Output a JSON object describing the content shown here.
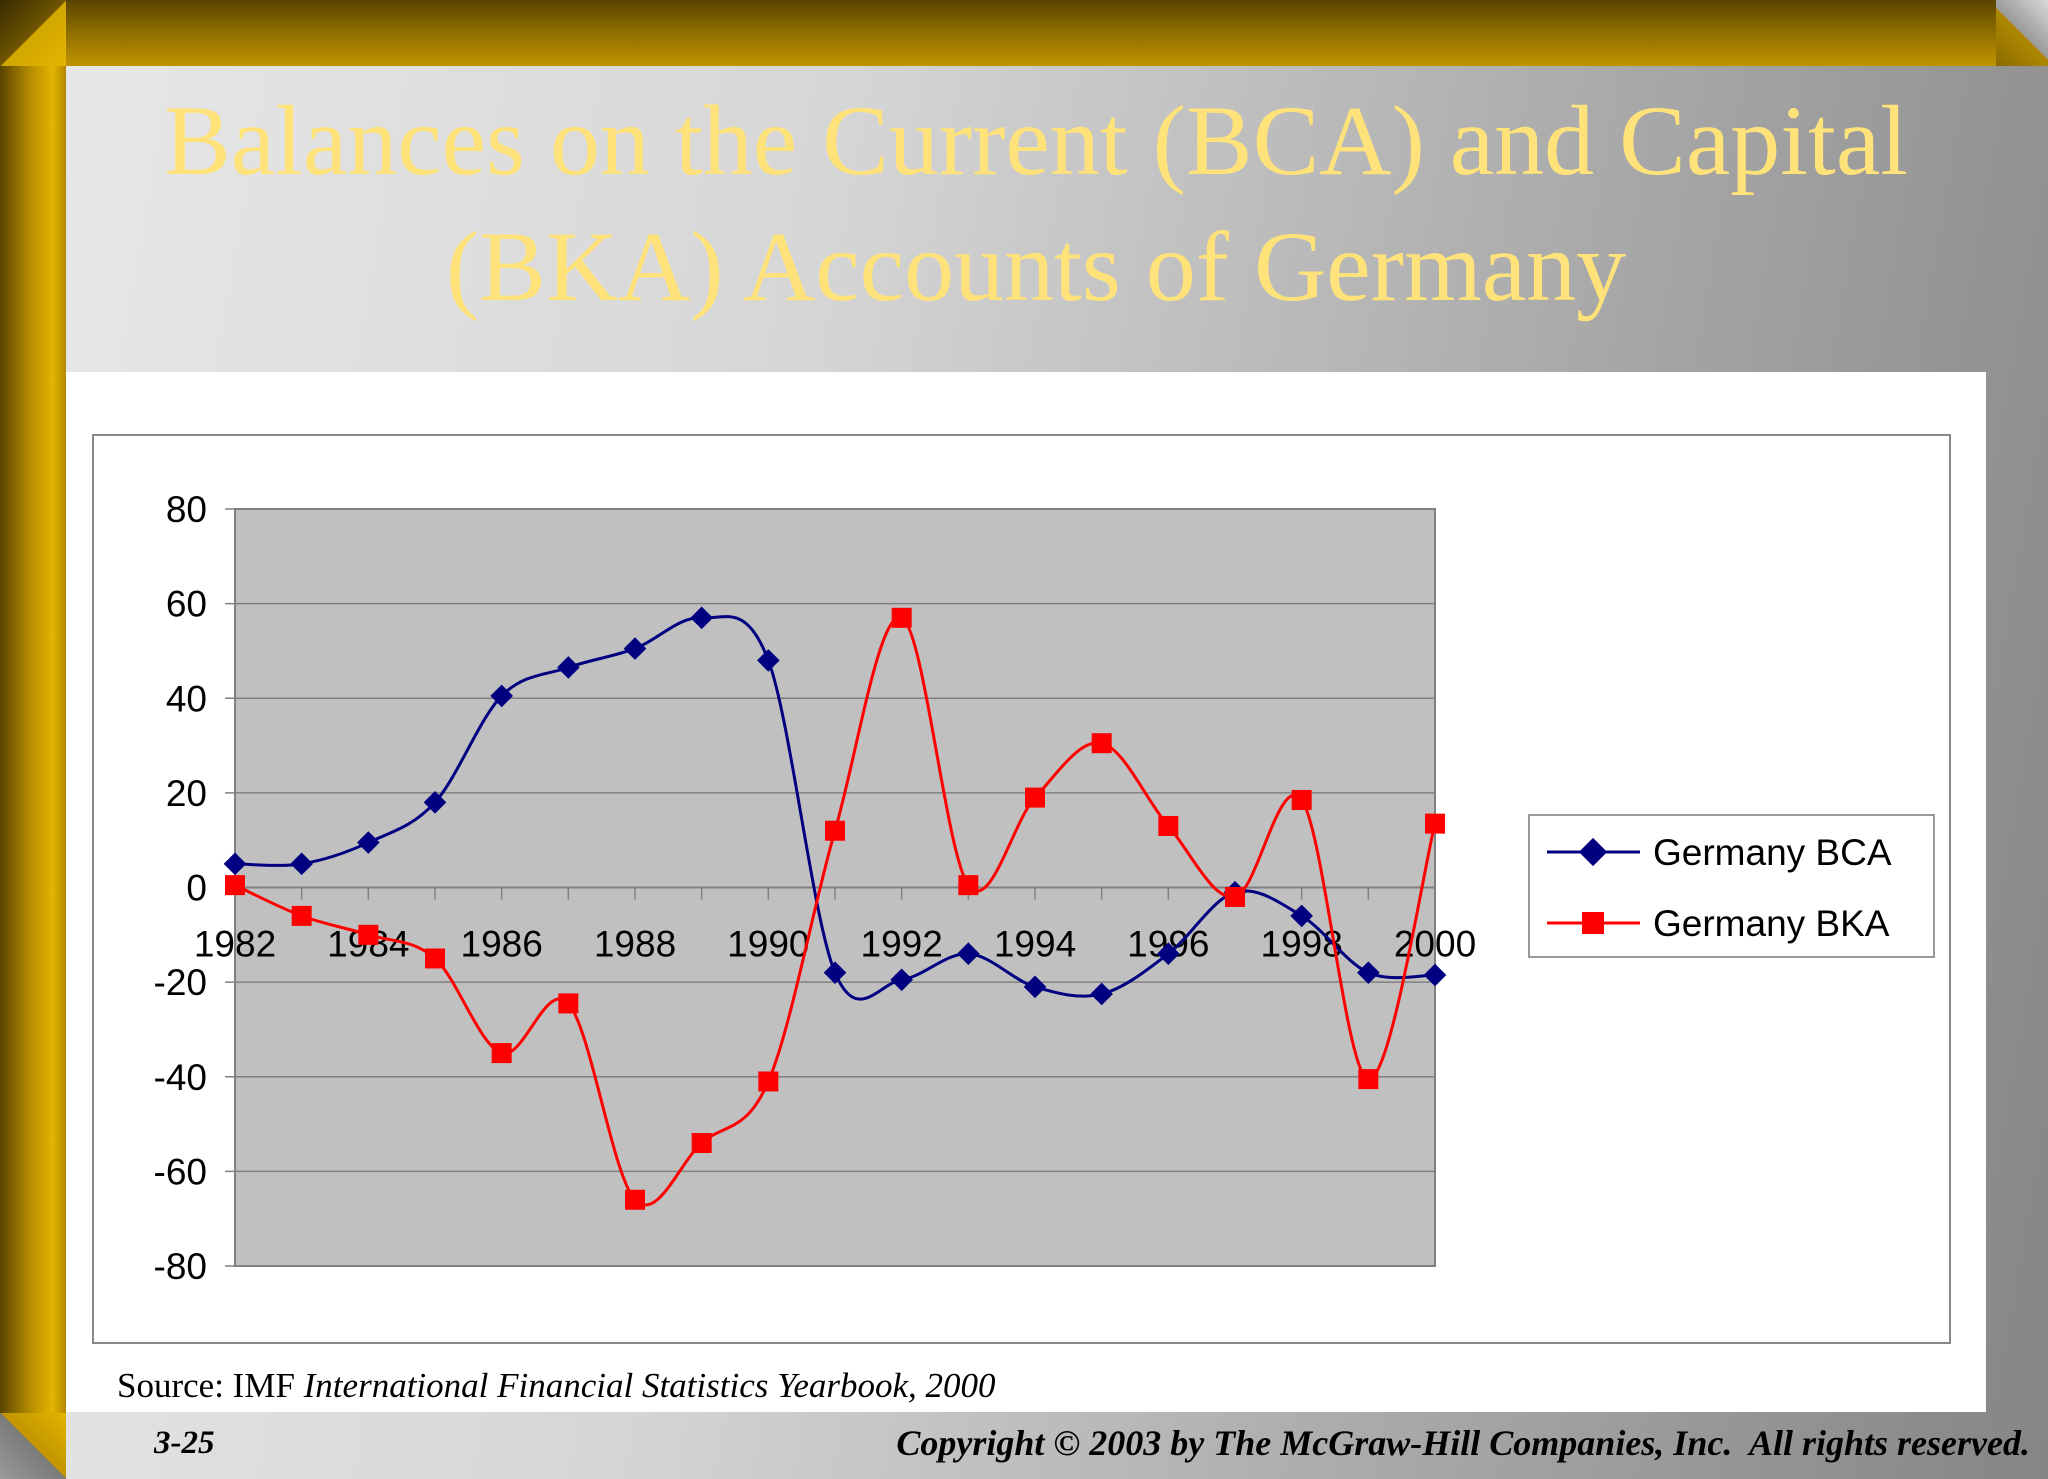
{
  "slide": {
    "title": "Balances on the Current (BCA) and Capital (BKA) Accounts of Germany",
    "source_prefix": "Source: IMF",
    "source_title": "International Financial Statistics Yearbook, 2000",
    "slide_number": "3-25",
    "copyright": "Copyright © 2003 by The McGraw-Hill Companies, Inc.  All rights reserved."
  },
  "colors": {
    "title": "#ffe27a",
    "plot_background": "#c0c0c0",
    "bca": "#000080",
    "bka": "#ff0000",
    "frame_gold": "#c09400"
  },
  "chart_data": {
    "type": "line",
    "title": "",
    "xlabel": "",
    "ylabel": "",
    "ylim": [
      -80,
      80
    ],
    "yticks": [
      80,
      60,
      40,
      20,
      0,
      -20,
      -40,
      -60,
      -80
    ],
    "xticks": [
      1982,
      1984,
      1986,
      1988,
      1990,
      1992,
      1994,
      1996,
      1998,
      2000
    ],
    "xlim": [
      1982,
      2000
    ],
    "grid": true,
    "smoothed": true,
    "legend_position": "right",
    "x": [
      1982,
      1983,
      1984,
      1985,
      1986,
      1987,
      1988,
      1989,
      1990,
      1991,
      1992,
      1993,
      1994,
      1995,
      1996,
      1997,
      1998,
      1999,
      2000
    ],
    "series": [
      {
        "name": "Germany BCA",
        "marker": "diamond",
        "values": [
          5,
          5,
          9.5,
          18,
          40.5,
          46.5,
          50.5,
          57,
          48,
          -18,
          -19.5,
          -14,
          -21,
          -22.5,
          -14,
          -1,
          -6,
          -18,
          -18.5
        ]
      },
      {
        "name": "Germany BKA",
        "marker": "square",
        "values": [
          0.5,
          -6,
          -10,
          -15,
          -35,
          -24.5,
          -66,
          -54,
          -41,
          12,
          57,
          0.5,
          19,
          30.5,
          13,
          -2,
          18.5,
          -40.5,
          13.5
        ]
      }
    ]
  }
}
